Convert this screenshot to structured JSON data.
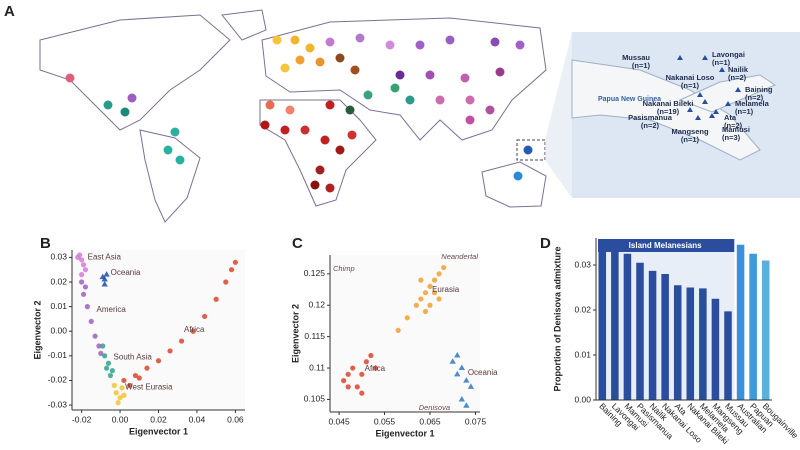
{
  "panels": [
    "A",
    "B",
    "C",
    "D"
  ],
  "map": {
    "region_label": "Papua New Guinea",
    "inset_labels": [
      {
        "name": "Mussau",
        "n": "(n=1)"
      },
      {
        "name": "Lavongai",
        "n": "(n=1)"
      },
      {
        "name": "Nailik",
        "n": "(n=2)"
      },
      {
        "name": "Nakanai Loso",
        "n": "(n=1)"
      },
      {
        "name": "Baining",
        "n": "(n=2)"
      },
      {
        "name": "Nakanai Bileki",
        "n": "(n=19)"
      },
      {
        "name": "Melamela",
        "n": "(n=1)"
      },
      {
        "name": "Pasismanua",
        "n": "(n=2)"
      },
      {
        "name": "Ata",
        "n": "(n=2)"
      },
      {
        "name": "Mangseng",
        "n": "(n=1)"
      },
      {
        "name": "Mamusi",
        "n": "(n=3)"
      }
    ]
  },
  "chart_data": [
    {
      "type": "scatter",
      "xlabel": "Eigenvector 1",
      "ylabel": "Eigenvector 2",
      "xlim": [
        -0.025,
        0.065
      ],
      "xticks": [
        -0.02,
        {
          "value": 0,
          "label": "0.00"
        },
        0.02,
        0.04,
        0.06
      ],
      "ylim": [
        -0.032,
        0.033
      ],
      "yticks": [
        0.03,
        0.02,
        0.01,
        {
          "value": 0,
          "label": "0.00"
        },
        -0.01,
        -0.02,
        -0.03
      ],
      "series": [
        {
          "name": "Africa",
          "color": "#d9452b",
          "marker": "circle",
          "x": [
            0.002,
            0.008,
            0.014,
            0.02,
            0.026,
            0.032,
            0.038,
            0.044,
            0.05,
            0.055,
            0.058,
            0.06,
            0.01,
            0.005
          ],
          "values": [
            -0.02,
            -0.018,
            -0.015,
            -0.012,
            -0.008,
            -0.004,
            0.0,
            0.006,
            0.013,
            0.02,
            0.025,
            0.028,
            -0.019,
            -0.022
          ]
        },
        {
          "name": "West Eurasia",
          "color": "#f2c230",
          "marker": "circle",
          "x": [
            -0.002,
            0,
            0.001,
            -0.001,
            0.002,
            -0.003
          ],
          "values": [
            -0.025,
            -0.027,
            -0.023,
            -0.029,
            -0.026,
            -0.022
          ]
        },
        {
          "name": "South Asia",
          "color": "#2aa58a",
          "marker": "circle",
          "x": [
            -0.008,
            -0.006,
            -0.004,
            -0.007,
            -0.005,
            -0.009
          ],
          "values": [
            -0.01,
            -0.013,
            -0.016,
            -0.015,
            -0.018,
            -0.006
          ]
        },
        {
          "name": "America",
          "color": "#9b5fc0",
          "marker": "circle",
          "x": [
            -0.02,
            -0.019,
            -0.017,
            -0.015,
            -0.013,
            -0.011,
            -0.01,
            -0.018
          ],
          "values": [
            0.02,
            0.015,
            0.01,
            0.004,
            -0.002,
            -0.006,
            -0.009,
            0.018
          ]
        },
        {
          "name": "East Asia",
          "color": "#d27ad6",
          "marker": "circle",
          "x": [
            -0.021,
            -0.02,
            -0.019,
            -0.022,
            -0.018,
            -0.02
          ],
          "values": [
            0.031,
            0.029,
            0.027,
            0.03,
            0.025,
            0.023
          ]
        },
        {
          "name": "Oceania",
          "color": "#1f4ea8",
          "marker": "triangle",
          "x": [
            -0.009,
            -0.008,
            -0.007,
            -0.008
          ],
          "values": [
            0.022,
            0.021,
            0.023,
            0.019
          ]
        }
      ]
    },
    {
      "type": "scatter",
      "xlabel": "Eigenvector 1",
      "ylabel": "Eigenvector 2",
      "xlim": [
        0.043,
        0.076
      ],
      "xticks": [
        0.045,
        0.055,
        0.065,
        0.075
      ],
      "ylim": [
        0.103,
        0.128
      ],
      "yticks": [
        0.105,
        0.11,
        0.115,
        0.12,
        0.125
      ],
      "annotations": [
        "Neandertal",
        "Chimp",
        "Denisova"
      ],
      "series": [
        {
          "name": "Africa",
          "color": "#d9452b",
          "marker": "circle",
          "x": [
            0.046,
            0.047,
            0.048,
            0.049,
            0.05,
            0.051,
            0.052,
            0.053,
            0.047,
            0.05
          ],
          "values": [
            0.108,
            0.109,
            0.11,
            0.107,
            0.109,
            0.111,
            0.112,
            0.11,
            0.107,
            0.106
          ]
        },
        {
          "name": "Eurasia",
          "color": "#f0a030",
          "marker": "circle",
          "x": [
            0.058,
            0.06,
            0.062,
            0.063,
            0.064,
            0.065,
            0.066,
            0.067,
            0.068,
            0.065,
            0.064,
            0.066,
            0.063,
            0.067
          ],
          "values": [
            0.116,
            0.118,
            0.12,
            0.121,
            0.122,
            0.123,
            0.124,
            0.125,
            0.126,
            0.12,
            0.119,
            0.122,
            0.124,
            0.121
          ]
        },
        {
          "name": "Oceania",
          "color": "#2f78c8",
          "marker": "triangle",
          "x": [
            0.07,
            0.071,
            0.072,
            0.073,
            0.074,
            0.072,
            0.073,
            0.071
          ],
          "values": [
            0.111,
            0.112,
            0.11,
            0.108,
            0.107,
            0.105,
            0.104,
            0.109
          ]
        }
      ]
    },
    {
      "type": "bar",
      "ylabel": "Proportion of Denisova admixture",
      "annotation": "Island Melanesians",
      "ylim": [
        0,
        0.036
      ],
      "yticks": [
        {
          "value": 0,
          "label": "0.00"
        },
        0.01,
        0.02,
        0.03
      ],
      "categories": [
        "Baining",
        "Lavongai",
        "Mamusi",
        "Pasismanua",
        "Nailik",
        "Nakanai Loso",
        "Ata",
        "Nakanai Bileki",
        "Melamela",
        "Mangseng",
        "Mussau",
        "Australian",
        "Papuan",
        "Bougainville"
      ],
      "values": [
        0.0345,
        0.033,
        0.0325,
        0.0305,
        0.0287,
        0.028,
        0.0255,
        0.025,
        0.0248,
        0.0225,
        0.0197,
        0.0345,
        0.0325,
        0.031
      ],
      "colors": [
        "#2a4d9e",
        "#2a4d9e",
        "#2a4d9e",
        "#2a4d9e",
        "#2a4d9e",
        "#2a4d9e",
        "#2a4d9e",
        "#2a4d9e",
        "#2a4d9e",
        "#2a4d9e",
        "#2a4d9e",
        "#3d8fd9",
        "#3f9ad8",
        "#5aaee0"
      ]
    }
  ]
}
